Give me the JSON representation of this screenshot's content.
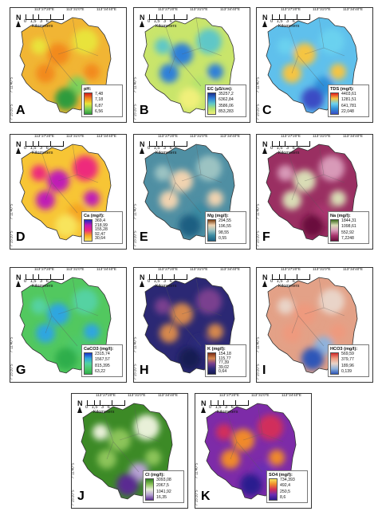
{
  "coords": {
    "top": [
      "113°27'20\"E",
      "113°31'0\"E",
      "113°34'40\"E"
    ],
    "left": [
      "7°8'0\"S",
      "7°11'40\"S",
      "7°15'20\"S"
    ]
  },
  "scale": {
    "ticks": "0 1,5 3 6",
    "unit": "Kilometers"
  },
  "north": "N",
  "panels": [
    {
      "letter": "A",
      "legend_title": "pH:",
      "values": [
        "7,48",
        "7,18",
        "6,87",
        "6,56"
      ],
      "colors": [
        "#d41a1a",
        "#f28a1f",
        "#e9e33a",
        "#7fd05a",
        "#2f9b3c"
      ],
      "base": "#f1b534"
    },
    {
      "letter": "B",
      "legend_title": "EC (µS/cm):",
      "values": [
        "35257,2",
        "6362,84",
        "3586,06",
        "853,283"
      ],
      "colors": [
        "#1a2d8f",
        "#2e80d8",
        "#5fc7c7",
        "#b5e36d",
        "#f0f07a"
      ],
      "base": "#c9e56b"
    },
    {
      "letter": "C",
      "legend_title": "TDS (mg/l):",
      "values": [
        "4403,61",
        "1281,51",
        "641,781",
        "22,048"
      ],
      "colors": [
        "#e41a1c",
        "#f5c542",
        "#6bd1ef",
        "#2e8fd9",
        "#3a4cc4"
      ],
      "base": "#5fc0ec"
    },
    {
      "letter": "D",
      "legend_title": "Ca (mg/l):",
      "values": [
        "369,4",
        "218,99",
        "155,28",
        "92,47",
        "30,64"
      ],
      "colors": [
        "#1b2cc1",
        "#c01ab5",
        "#ee2a7b",
        "#f5a623",
        "#f8e45c"
      ],
      "base": "#f7c535"
    },
    {
      "letter": "E",
      "legend_title": "Mg (mg/l):",
      "values": [
        "294,55",
        "196,55",
        "98,55",
        "0,55"
      ],
      "colors": [
        "#7a3f12",
        "#f0d3b0",
        "#9cc3c2",
        "#3a8aa1",
        "#1d5f82"
      ],
      "base": "#4f8fa3"
    },
    {
      "letter": "F",
      "legend_title": "Na (mg/l):",
      "values": [
        "1844,31",
        "1098,61",
        "552,92",
        "7,2248"
      ],
      "colors": [
        "#3e6b1d",
        "#d9dcb5",
        "#d89ab8",
        "#a8356e",
        "#6b0f3c"
      ],
      "base": "#9a2f62"
    },
    {
      "letter": "G",
      "legend_title": "CaCO3 (mg/l):",
      "values": [
        "2315,74",
        "1567,57",
        "815,395",
        "63,22"
      ],
      "colors": [
        "#1833c9",
        "#2fa6e0",
        "#54d2a2",
        "#4cc96c",
        "#2fae4b"
      ],
      "base": "#52c85f"
    },
    {
      "letter": "H",
      "legend_title": "K (mg/l):",
      "values": [
        "154,18",
        "115,77",
        "77,39",
        "39,02",
        "0,64"
      ],
      "colors": [
        "#7a2a14",
        "#d6884e",
        "#7a3f8f",
        "#2c2a7a",
        "#171a52"
      ],
      "base": "#2b2874"
    },
    {
      "letter": "I",
      "legend_title": "HCO3 (mg/l):",
      "values": [
        "569,59",
        "379,77",
        "189,96",
        "0,139"
      ],
      "colors": [
        "#cf2a2a",
        "#ee9a7e",
        "#e9d4c8",
        "#8fb2dc",
        "#2e56b8"
      ],
      "base": "#e3a187"
    },
    {
      "letter": "J",
      "legend_title": "Cl (mg/l):",
      "values": [
        "3093,08",
        "2067,5",
        "1041,92",
        "16,35"
      ],
      "colors": [
        "#2e7d1f",
        "#8cc45a",
        "#e8f0d8",
        "#b7a3d3",
        "#5a2c91"
      ],
      "base": "#3c8a26"
    },
    {
      "letter": "K",
      "legend_title": "SO4 (mg/l):",
      "values": [
        "734,393",
        "492,4",
        "250,5",
        "8,6"
      ],
      "colors": [
        "#f6e35a",
        "#f0892b",
        "#d12d5b",
        "#6b2eb3",
        "#2b1a8f"
      ],
      "base": "#7d2ba8"
    }
  ]
}
